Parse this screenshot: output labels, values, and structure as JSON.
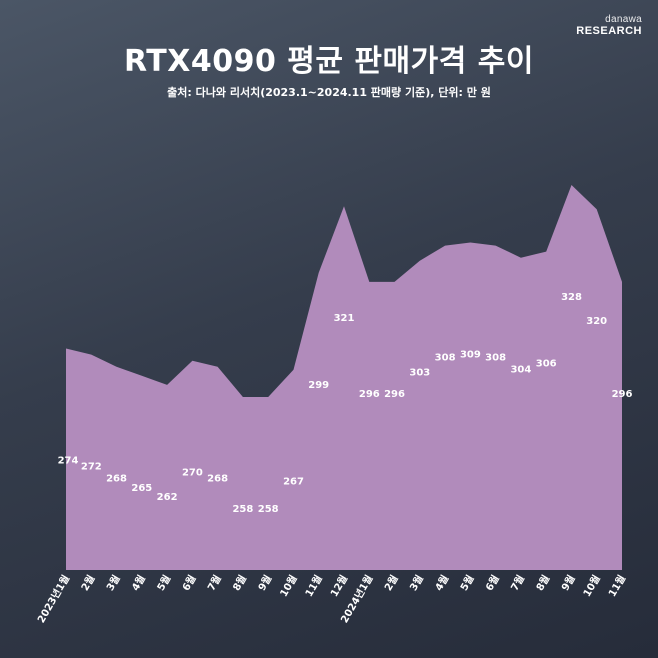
{
  "brand": {
    "line1": "danawa",
    "line2": "RESEARCH"
  },
  "title": "RTX4090 평균 판매가격 추이",
  "subtitle": "출처: 다나와 리서치(2023.1~2024.11 판매량 기준), 단위: 만 원",
  "colors": {
    "area": "#b18bbb",
    "text": "#ffffff",
    "background": "#353d4c"
  },
  "chart_data": {
    "type": "area",
    "unit": "만 원",
    "categories": [
      "2023년1월",
      "2월",
      "3월",
      "4월",
      "5월",
      "6월",
      "7월",
      "8월",
      "9월",
      "10월",
      "11월",
      "12월",
      "2024년1월",
      "2월",
      "3월",
      "4월",
      "5월",
      "6월",
      "7월",
      "8월",
      "9월",
      "10월",
      "11월"
    ],
    "values": [
      274,
      272,
      268,
      265,
      262,
      270,
      268,
      258,
      258,
      267,
      299,
      321,
      296,
      296,
      303,
      308,
      309,
      308,
      304,
      306,
      328,
      320,
      296
    ],
    "xlabel": "",
    "ylabel": "",
    "grid": false,
    "legend": "none"
  }
}
